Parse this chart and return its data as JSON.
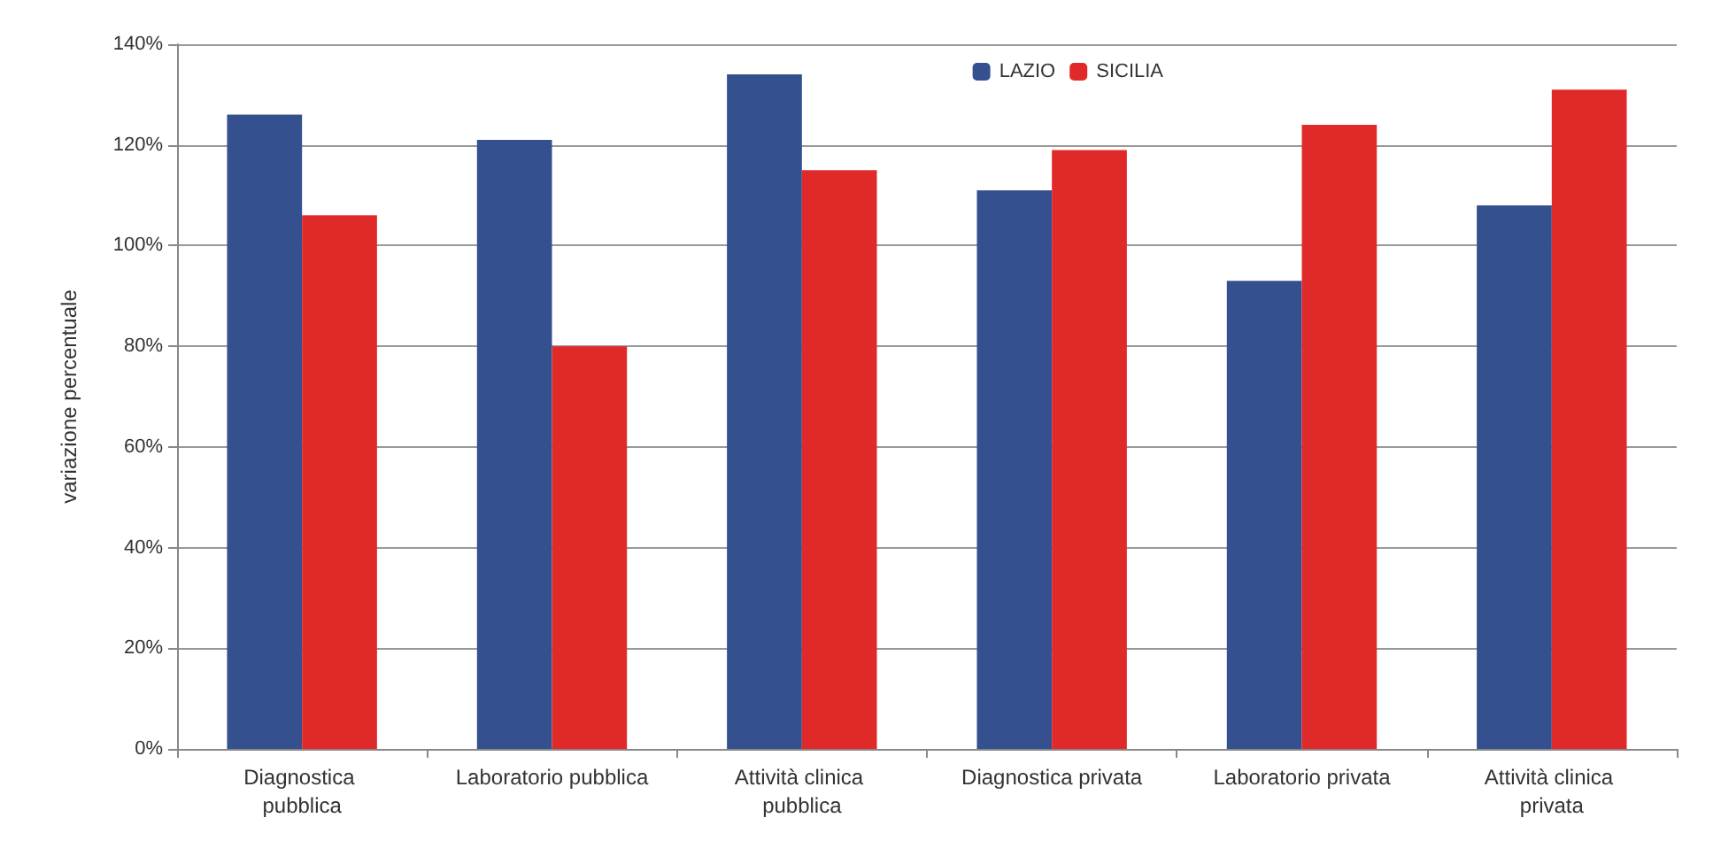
{
  "chart_data": {
    "type": "bar",
    "ylabel": "variazione percentuale",
    "categories": [
      "Diagnostica pubblica",
      "Laboratorio pubblica",
      "Attività clinica pubblica",
      "Diagnostica privata",
      "Laboratorio privata",
      "Attività clinica privata"
    ],
    "series": [
      {
        "name": "LAZIO",
        "color": "#34508f",
        "values": [
          126,
          121,
          134,
          111,
          93,
          108
        ]
      },
      {
        "name": "SICILIA",
        "color": "#e02a2a",
        "values": [
          106,
          80,
          115,
          119,
          124,
          131
        ]
      }
    ],
    "ylim": [
      0,
      140
    ],
    "yticks": [
      {
        "value": 0,
        "label": "0%"
      },
      {
        "value": 20,
        "label": "20%"
      },
      {
        "value": 40,
        "label": "40%"
      },
      {
        "value": 60,
        "label": "60%"
      },
      {
        "value": 80,
        "label": "80%"
      },
      {
        "value": 100,
        "label": "100%"
      },
      {
        "value": 120,
        "label": "120%"
      },
      {
        "value": 140,
        "label": "140%"
      }
    ],
    "grid": "y",
    "legend": "top"
  }
}
